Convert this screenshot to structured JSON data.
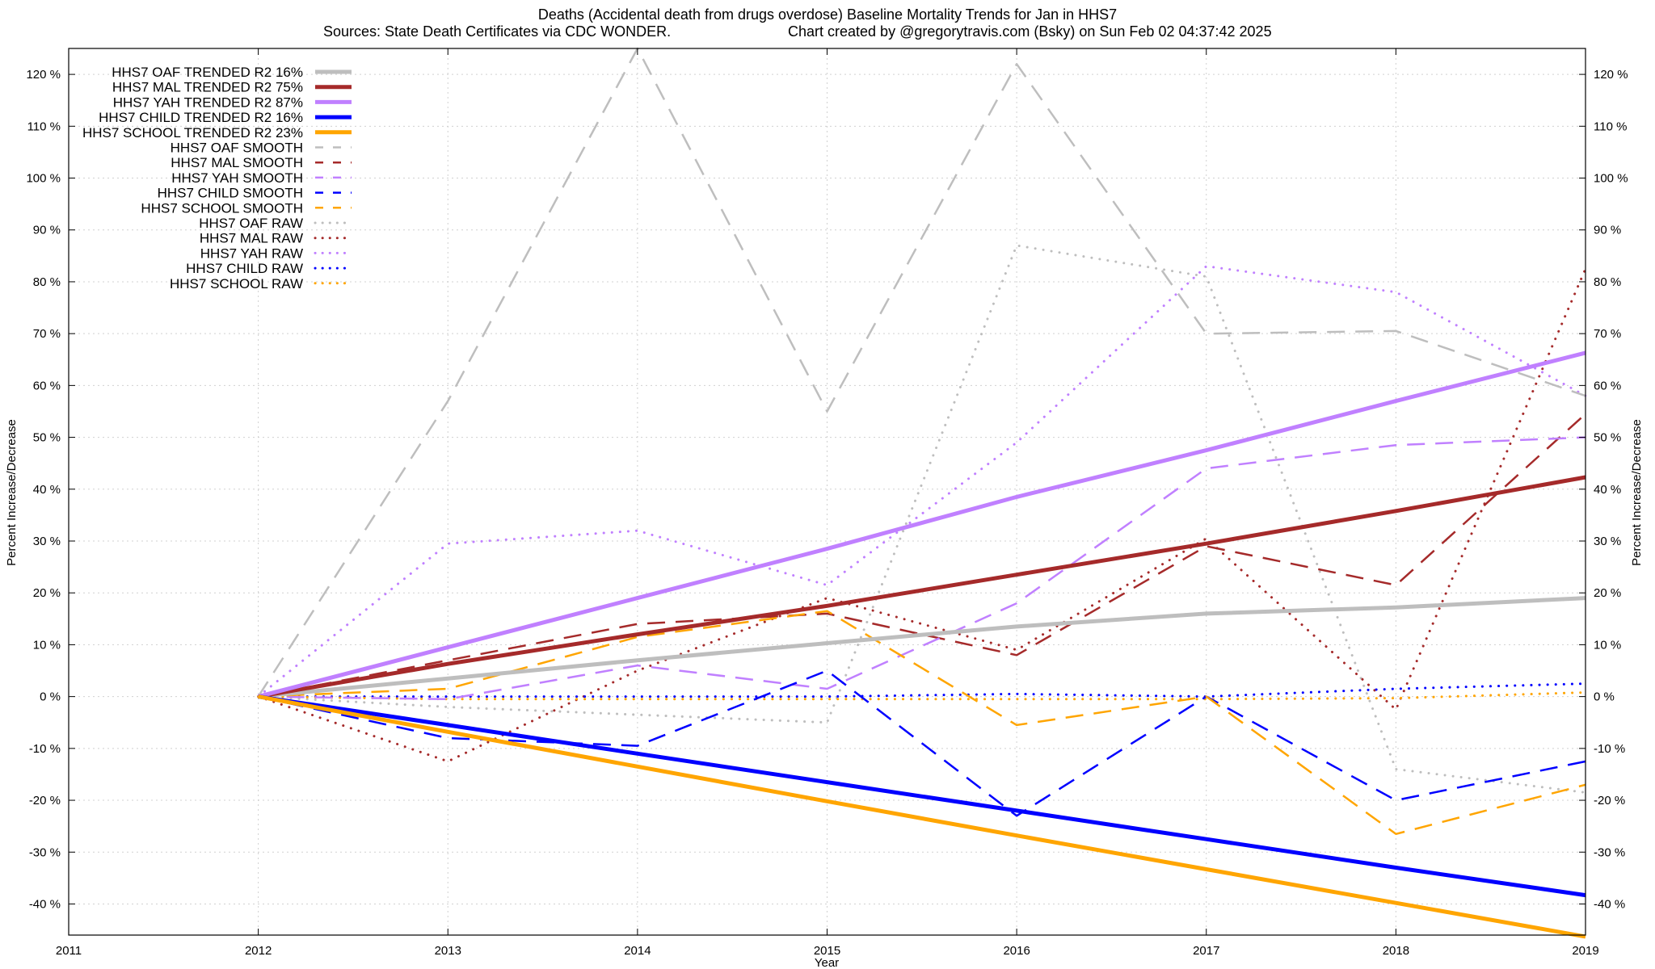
{
  "chart_data": {
    "type": "line",
    "title": "Deaths (Accidental death from drugs overdose)  Baseline Mortality Trends for Jan in HHS7",
    "subtitle_left": "Sources: State Death Certificates via CDC WONDER.",
    "subtitle_right": "Chart created by @gregorytravis.com (Bsky) on Sun Feb 02 04:37:42 2025",
    "xlabel": "Year",
    "ylabel_left": "Percent Increase/Decrease",
    "ylabel_right": "Percent Increase/Decrease",
    "xlim": [
      2011,
      2019
    ],
    "ylim": [
      -46,
      125
    ],
    "x_ticks": [
      "2011",
      "2012",
      "2013",
      "2014",
      "2015",
      "2016",
      "2017",
      "2018",
      "2019"
    ],
    "y_ticks": [
      "-40 %",
      "-30 %",
      "-20 %",
      "-10 %",
      "0 %",
      "10 %",
      "20 %",
      "30 %",
      "40 %",
      "50 %",
      "60 %",
      "70 %",
      "80 %",
      "90 %",
      "100 %",
      "110 %",
      "120 %"
    ],
    "y_tick_values": [
      -40,
      -30,
      -20,
      -10,
      0,
      10,
      20,
      30,
      40,
      50,
      60,
      70,
      80,
      90,
      100,
      110,
      120
    ],
    "grid": true,
    "legend_position": "top-left",
    "x": [
      2012,
      2013,
      2014,
      2015,
      2016,
      2017,
      2018,
      2019
    ],
    "series": [
      {
        "name": "HHS7 OAF TRENDED R2  16%",
        "style": "trend",
        "color": "#bebebe",
        "values": [
          0,
          3.5,
          7,
          10.3,
          13.5,
          16,
          17.2,
          19
        ]
      },
      {
        "name": "HHS7 MAL TRENDED R2  75%",
        "style": "trend",
        "color": "#a52a2a",
        "values": [
          0,
          6.3,
          12,
          17.5,
          23.5,
          29.5,
          35.8,
          42.3
        ]
      },
      {
        "name": "HHS7 YAH TRENDED R2  87%",
        "style": "trend",
        "color": "#c080ff",
        "values": [
          0,
          9.5,
          19,
          28.5,
          38.5,
          47.5,
          57,
          66.3
        ]
      },
      {
        "name": "HHS7 CHILD TRENDED R2  16%",
        "style": "trend",
        "color": "#0000ff",
        "values": [
          0,
          -5.5,
          -11,
          -16.5,
          -22,
          -27.5,
          -33,
          -38.3
        ]
      },
      {
        "name": "HHS7 SCHOOL TRENDED R2  23%",
        "style": "trend",
        "color": "#ffa500",
        "values": [
          0,
          -6.8,
          -13.5,
          -20.2,
          -26.8,
          -33.3,
          -39.8,
          -46.3
        ]
      },
      {
        "name": "HHS7 OAF SMOOTH",
        "style": "smooth",
        "color": "#bebebe",
        "values": [
          0,
          57,
          125,
          55,
          122,
          70,
          70.5,
          58
        ]
      },
      {
        "name": "HHS7 MAL SMOOTH",
        "style": "smooth",
        "color": "#a52a2a",
        "values": [
          0,
          7,
          14,
          16,
          8,
          29,
          21.5,
          54.5
        ]
      },
      {
        "name": "HHS7 YAH SMOOTH",
        "style": "smooth",
        "color": "#c080ff",
        "values": [
          0,
          -0.5,
          6,
          1.5,
          18,
          44,
          48.5,
          50
        ]
      },
      {
        "name": "HHS7 CHILD SMOOTH",
        "style": "smooth",
        "color": "#0000ff",
        "values": [
          0,
          -8,
          -9.5,
          5,
          -23,
          0,
          -20,
          -12.5
        ]
      },
      {
        "name": "HHS7 SCHOOL SMOOTH",
        "style": "smooth",
        "color": "#ffa500",
        "values": [
          0,
          1.5,
          11.5,
          16.5,
          -5.5,
          0,
          -26.5,
          -17
        ]
      },
      {
        "name": "HHS7 OAF RAW",
        "style": "raw",
        "color": "#bebebe",
        "values": [
          0,
          -2,
          -3.5,
          -5,
          87,
          81,
          -14,
          -18.5
        ]
      },
      {
        "name": "HHS7 MAL RAW",
        "style": "raw",
        "color": "#a52a2a",
        "values": [
          0,
          -12.5,
          5,
          19,
          9,
          30.5,
          -2.5,
          82.5
        ]
      },
      {
        "name": "HHS7 YAH RAW",
        "style": "raw",
        "color": "#c080ff",
        "values": [
          0,
          29.5,
          32,
          21.5,
          49,
          83,
          78,
          58
        ]
      },
      {
        "name": "HHS7 CHILD RAW",
        "style": "raw",
        "color": "#0000ff",
        "values": [
          0,
          0,
          0,
          0,
          0.5,
          0,
          1.5,
          2.5
        ]
      },
      {
        "name": "HHS7 SCHOOL RAW",
        "style": "raw",
        "color": "#ffa500",
        "values": [
          0,
          -0.5,
          -0.5,
          -0.5,
          -0.5,
          -0.5,
          -0.3,
          0.8
        ]
      }
    ]
  }
}
